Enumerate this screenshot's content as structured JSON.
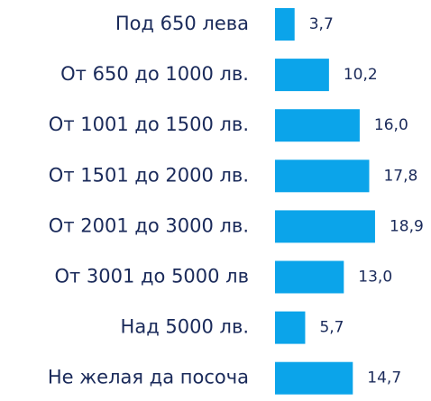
{
  "chart_data": {
    "type": "bar",
    "orientation": "horizontal",
    "categories": [
      "Под 650 лева",
      "От 650 до 1000 лв.",
      "От 1001 до 1500 лв.",
      "От 1501 до 2000 лв.",
      "От 2001 до 3000 лв.",
      "От 3001 до 5000 лв",
      "Над 5000 лв.",
      "Не желая да посоча"
    ],
    "values": [
      3.7,
      10.2,
      16.0,
      17.8,
      18.9,
      13.0,
      5.7,
      14.7
    ],
    "value_labels": [
      "3,7",
      "10,2",
      "16,0",
      "17,8",
      "18,9",
      "13,0",
      "5,7",
      "14,7"
    ],
    "color": "#0ba4ea"
  }
}
